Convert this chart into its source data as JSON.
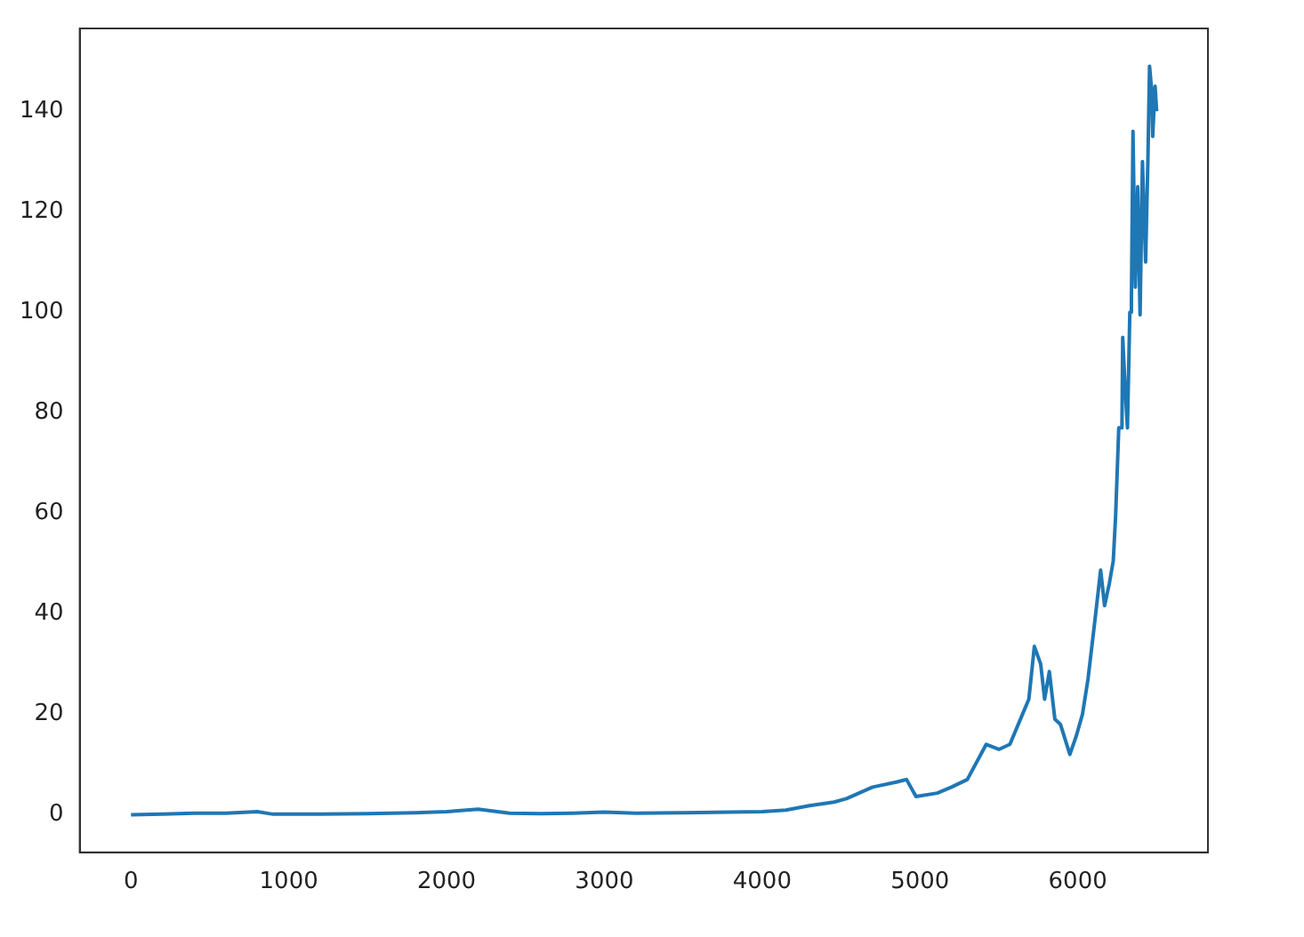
{
  "chart_data": {
    "type": "line",
    "x": [
      0,
      200,
      400,
      600,
      800,
      900,
      1200,
      1500,
      1800,
      2000,
      2200,
      2400,
      2600,
      2800,
      3000,
      3200,
      3500,
      3800,
      4000,
      4150,
      4300,
      4455,
      4534,
      4700,
      4850,
      4915,
      4975,
      5110,
      5200,
      5300,
      5420,
      5500,
      5570,
      5650,
      5690,
      5725,
      5765,
      5790,
      5820,
      5855,
      5890,
      5950,
      5990,
      6030,
      6065,
      6110,
      6145,
      6170,
      6200,
      6225,
      6240,
      6260,
      6280,
      6285,
      6300,
      6315,
      6330,
      6340,
      6350,
      6365,
      6380,
      6395,
      6410,
      6430,
      6445,
      6455,
      6470,
      6475,
      6490,
      6500
    ],
    "series": [
      {
        "color": "#1f77b4",
        "values": [
          0,
          0.1,
          0.3,
          0.3,
          0.6,
          0.1,
          0.1,
          0.2,
          0.4,
          0.6,
          1.1,
          0.3,
          0.2,
          0.3,
          0.5,
          0.3,
          0.4,
          0.5,
          0.6,
          0.9,
          1.8,
          2.5,
          3.2,
          5.5,
          6.5,
          7,
          3.6,
          4.3,
          5.5,
          7,
          14,
          13,
          14,
          20,
          23,
          33.5,
          30,
          23,
          28.5,
          19,
          18,
          12,
          15.6,
          20,
          27,
          39,
          48.7,
          41.6,
          46,
          50.5,
          59.5,
          77,
          77,
          95,
          85,
          77,
          100,
          102,
          136,
          105,
          125,
          99.5,
          130,
          110,
          131,
          149,
          143.5,
          135,
          145,
          140
        ]
      }
    ],
    "xlim": [
      -325,
      6825
    ],
    "ylim": [
      -7.5,
      156.5
    ],
    "xticks": [
      0,
      1000,
      2000,
      3000,
      4000,
      5000,
      6000
    ],
    "yticks": [
      0,
      20,
      40,
      60,
      80,
      100,
      120,
      140
    ],
    "grid": false,
    "legend": false
  }
}
